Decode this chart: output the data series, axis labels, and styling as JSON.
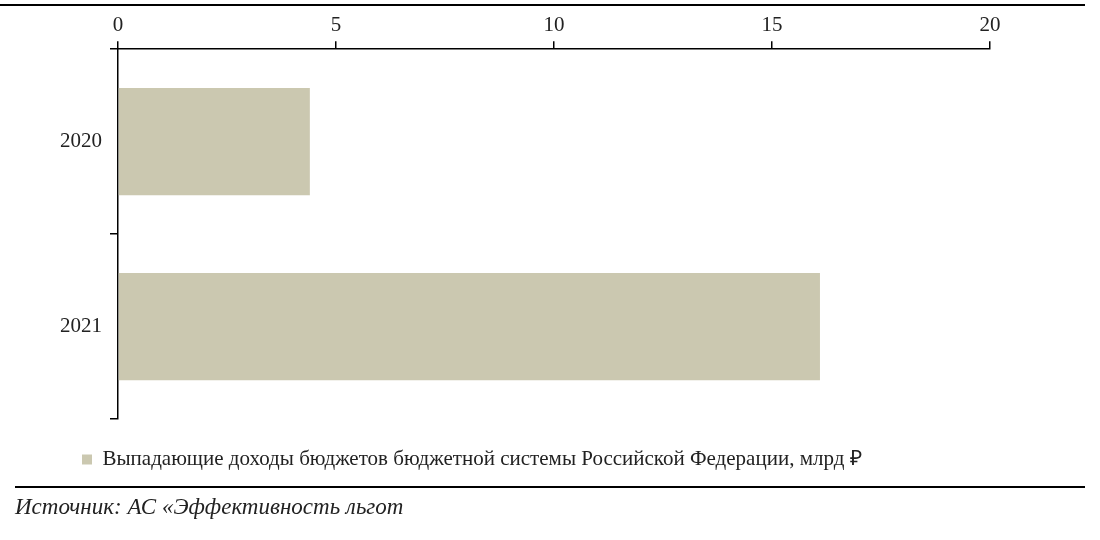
{
  "chart_data": {
    "type": "bar",
    "orientation": "horizontal",
    "categories": [
      "2020",
      "2021"
    ],
    "series": [
      {
        "name": "Выпадающие доходы бюджетов бюджетной системы Российской Федерации, млрд ₽",
        "color": "#cbc8b0",
        "values": [
          4.4,
          16.1
        ]
      }
    ],
    "xlim": [
      0,
      20
    ],
    "xticks": [
      0,
      5,
      10,
      15,
      20
    ],
    "grid": false,
    "legend": "bottom",
    "annotations": [
      "Источник: АС «Эффективность льгот"
    ]
  }
}
